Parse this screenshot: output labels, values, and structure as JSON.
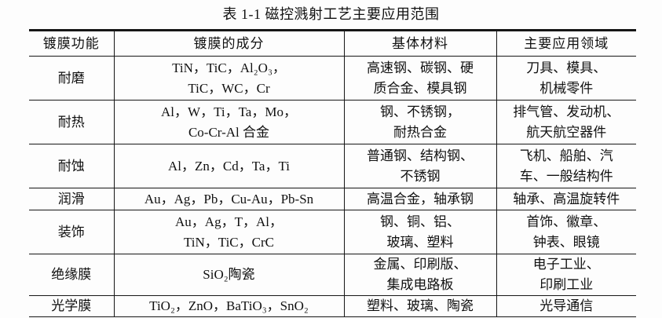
{
  "page": {
    "title": "表 1-1 磁控溅射工艺主要应用范围"
  },
  "table": {
    "headers": [
      "镀膜功能",
      "镀膜的成分",
      "基体材料",
      "主要应用领域"
    ],
    "rows": [
      {
        "function": "耐磨",
        "composition": "TiN，TiC，Al₂O₃，\nTiC，WC，Cr",
        "substrate": "高速钢、碳钢、硬\n质合金、模具钢",
        "application": "刀具、模具、\n机械零件"
      },
      {
        "function": "耐热",
        "composition": "Al，W，Ti，Ta，Mo，\nCo-Cr-Al 合金",
        "substrate": "钢、不锈钢，\n耐热合金",
        "application": "排气管、发动机、\n航天航空器件"
      },
      {
        "function": "耐蚀",
        "composition": "Al，Zn，Cd，Ta，Ti",
        "substrate": "普通钢、结构钢、\n不锈钢",
        "application": "飞机、船舶、汽\n车、一般结构件"
      },
      {
        "function": "润滑",
        "composition": "Au，Ag，Pb，Cu-Au，Pb-Sn",
        "substrate": "高温合金，轴承钢",
        "application": "轴承、高温旋转件"
      },
      {
        "function": "装饰",
        "composition": "Au，Ag，T，Al，\nTiN，TiC，CrC",
        "substrate": "钢、铜、铝、\n玻璃、塑料",
        "application": "首饰、徽章、\n钟表、眼镜"
      },
      {
        "function": "绝缘膜",
        "composition": "SiO₂陶瓷",
        "substrate": "金属、印刷版、\n集成电路板",
        "application": "电子工业、\n印刷工业"
      },
      {
        "function": "光学膜",
        "composition": "TiO₂，ZnO，BaTiO₃，SnO₂",
        "substrate": "塑料、玻璃、陶瓷",
        "application": "光导通信"
      }
    ]
  }
}
